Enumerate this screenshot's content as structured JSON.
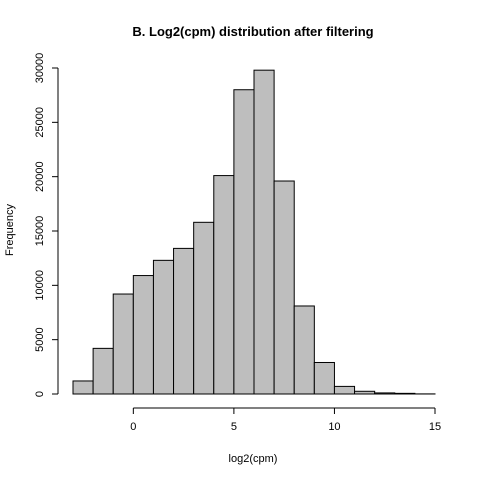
{
  "chart_data": {
    "type": "bar",
    "title": "B. Log2(cpm) distribution after filtering",
    "xlabel": "log2(cpm)",
    "ylabel": "Frequency",
    "bar_color": "#bebebe",
    "bin_edges": [
      -3,
      -2,
      -1,
      0,
      1,
      2,
      3,
      4,
      5,
      6,
      7,
      8,
      9,
      10,
      11,
      12,
      13,
      14,
      15
    ],
    "values": [
      1200,
      4200,
      9200,
      10900,
      12300,
      13400,
      15800,
      20100,
      28000,
      29800,
      19600,
      8100,
      2900,
      700,
      250,
      100,
      60,
      10
    ],
    "xlim": [
      -3,
      15
    ],
    "ylim": [
      0,
      30000
    ],
    "x_ticks": [
      0,
      5,
      10,
      15
    ],
    "x_tick_labels": [
      "0",
      "5",
      "10",
      "15"
    ],
    "y_ticks": [
      0,
      5000,
      10000,
      15000,
      20000,
      25000,
      30000
    ],
    "y_tick_labels": [
      "0",
      "5000",
      "10000",
      "15000",
      "20000",
      "25000",
      "30000"
    ],
    "grid": false,
    "legend": "none"
  }
}
